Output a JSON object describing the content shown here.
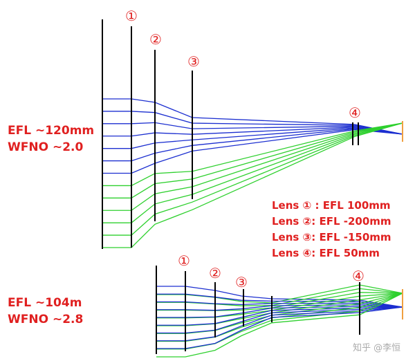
{
  "top_system": {
    "efl_label": "EFL ~120mm",
    "wfno_label": "WFNO ~2.0",
    "lens_markers": [
      "①",
      "②",
      "③",
      "④"
    ]
  },
  "bottom_system": {
    "efl_label": "EFL ~104m",
    "wfno_label": "WFNO ~2.8",
    "lens_markers": [
      "①",
      "②",
      "③",
      "④"
    ]
  },
  "lens_list": [
    "Lens ① : EFL 100mm",
    "Lens ②: EFL -200mm",
    "Lens ③: EFL -150mm",
    "Lens ④: EFL 50mm"
  ],
  "watermark": "知乎 @李恒",
  "colors": {
    "label_red": "#e02020",
    "ray_blue": "#1c2fd0",
    "ray_green": "#2ed02e",
    "lens_black": "#000000",
    "image_plane": "#f0a040"
  }
}
